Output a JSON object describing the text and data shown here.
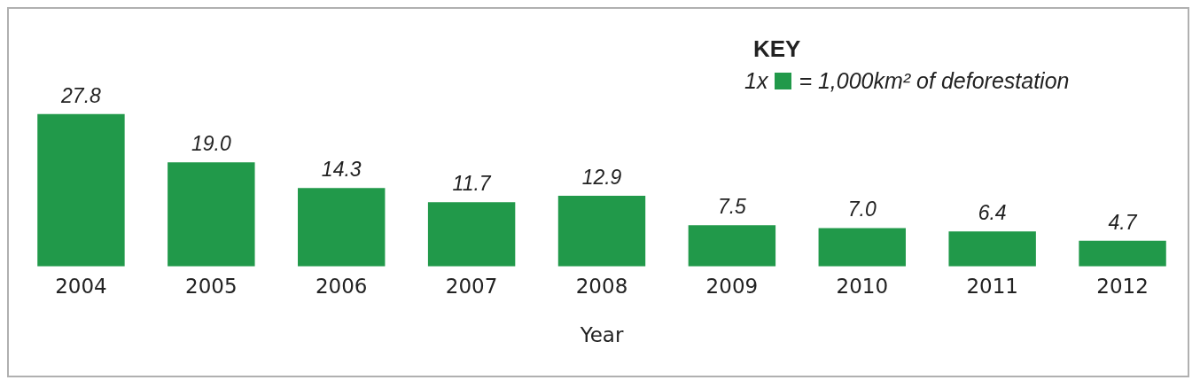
{
  "chart_data": {
    "type": "bar",
    "categories": [
      "2004",
      "2005",
      "2006",
      "2007",
      "2008",
      "2009",
      "2010",
      "2011",
      "2012"
    ],
    "values": [
      27.8,
      19.0,
      14.3,
      11.7,
      12.9,
      7.5,
      7.0,
      6.4,
      4.7
    ],
    "value_labels": [
      "27.8",
      "19.0",
      "14.3",
      "11.7",
      "12.9",
      "7.5",
      "7.0",
      "6.4",
      "4.7"
    ],
    "color": "#21994a",
    "xlabel": "Year",
    "legend": false,
    "grid": false,
    "annotations": [
      "KEY",
      "1x",
      "= 1,000km² of deforestation"
    ]
  }
}
